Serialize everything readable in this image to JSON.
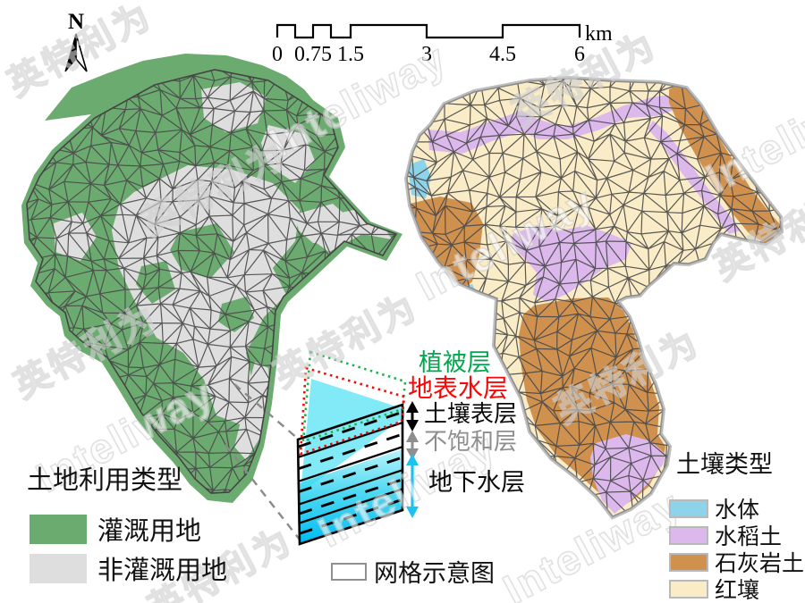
{
  "north": {
    "label": "N"
  },
  "scalebar": {
    "ticks": [
      "0",
      "0.75",
      "1.5",
      "3",
      "4.5",
      "6"
    ],
    "unit": "km"
  },
  "watermark": {
    "latin": "Inteliway",
    "cjk": "英特利为"
  },
  "left_map": {
    "title": "土地利用类型",
    "legend": [
      {
        "label": "灌溉用地",
        "color": "#6cab70"
      },
      {
        "label": "非灌溉用地",
        "color": "#dedede"
      }
    ]
  },
  "right_map": {
    "title": "土壤类型",
    "legend": [
      {
        "label": "水体",
        "color": "#8dd3ea"
      },
      {
        "label": "水稻土",
        "color": "#dcb8ed"
      },
      {
        "label": "石灰岩土",
        "color": "#d0914f"
      },
      {
        "label": "红壤",
        "color": "#faecc6"
      }
    ]
  },
  "schematic": {
    "layers": [
      {
        "label": "植被层",
        "color": "#00a94f"
      },
      {
        "label": "地表水层",
        "color": "#fe0505"
      },
      {
        "label": "土壤表层",
        "color": "#0a0a0a"
      },
      {
        "label": "不饱和层",
        "color": "#8e8e8e"
      },
      {
        "label": "地下水层",
        "color": "#0a0a0a"
      }
    ],
    "caption": "网格示意图"
  },
  "colors": {
    "mesh_line": "#4a4a4a",
    "left_outline": "#444444",
    "right_outline": "#8a8a8a",
    "water_arrow": "#1cc3f2",
    "water_sheet": "#35dcf0",
    "groundwater_top": "#b8f4fa",
    "groundwater_bottom": "#00bdf2"
  }
}
